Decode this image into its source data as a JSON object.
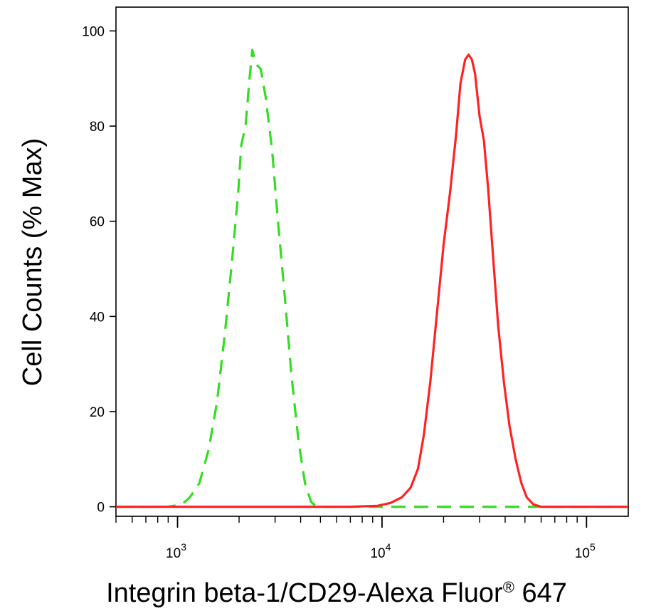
{
  "chart_data": {
    "type": "line",
    "title": "",
    "xlabel_main": "Integrin beta-1/CD29-Alexa Fluor",
    "xlabel_reg": "®",
    "xlabel_tail": " 647",
    "ylabel": "Cell Counts (% Max)",
    "x_scale": "log",
    "xlim": [
      500,
      160000
    ],
    "ylim": [
      -2,
      105
    ],
    "y_ticks": [
      {
        "value": 0,
        "label": "0"
      },
      {
        "value": 20,
        "label": "20"
      },
      {
        "value": 40,
        "label": "40"
      },
      {
        "value": 60,
        "label": "60"
      },
      {
        "value": 80,
        "label": "80"
      },
      {
        "value": 100,
        "label": "100"
      }
    ],
    "x_ticks": [
      {
        "value": 1000,
        "base": "10",
        "exp": "3"
      },
      {
        "value": 10000,
        "base": "10",
        "exp": "4"
      },
      {
        "value": 100000,
        "base": "10",
        "exp": "5"
      }
    ],
    "grid": false,
    "series": [
      {
        "color": "#33dd22",
        "dash": true,
        "points": [
          [
            500,
            0
          ],
          [
            900,
            0
          ],
          [
            1050,
            0.5
          ],
          [
            1150,
            2
          ],
          [
            1280,
            5
          ],
          [
            1420,
            12
          ],
          [
            1560,
            22
          ],
          [
            1700,
            36
          ],
          [
            1850,
            52
          ],
          [
            1980,
            66
          ],
          [
            2050,
            76
          ],
          [
            2150,
            80
          ],
          [
            2250,
            90
          ],
          [
            2320,
            96
          ],
          [
            2420,
            93
          ],
          [
            2550,
            92
          ],
          [
            2700,
            86
          ],
          [
            2900,
            75
          ],
          [
            3100,
            60
          ],
          [
            3350,
            44
          ],
          [
            3600,
            28
          ],
          [
            3900,
            14
          ],
          [
            4200,
            5
          ],
          [
            4500,
            1
          ],
          [
            4800,
            0
          ],
          [
            160000,
            0
          ]
        ]
      },
      {
        "color": "#ff2222",
        "dash": false,
        "points": [
          [
            500,
            0
          ],
          [
            7000,
            0
          ],
          [
            9500,
            0.2
          ],
          [
            11000,
            0.8
          ],
          [
            12500,
            2
          ],
          [
            13800,
            4
          ],
          [
            15000,
            8
          ],
          [
            16000,
            15
          ],
          [
            17200,
            26
          ],
          [
            18500,
            40
          ],
          [
            20000,
            55
          ],
          [
            21500,
            66
          ],
          [
            23000,
            78
          ],
          [
            24200,
            89
          ],
          [
            25500,
            94
          ],
          [
            26500,
            95
          ],
          [
            27500,
            94
          ],
          [
            28500,
            91
          ],
          [
            30000,
            82
          ],
          [
            31500,
            77
          ],
          [
            33000,
            67
          ],
          [
            35000,
            52
          ],
          [
            37000,
            38
          ],
          [
            39500,
            26
          ],
          [
            42000,
            17
          ],
          [
            45000,
            10
          ],
          [
            48000,
            5
          ],
          [
            51000,
            2
          ],
          [
            55000,
            0.5
          ],
          [
            60000,
            0
          ],
          [
            160000,
            0
          ]
        ]
      }
    ]
  }
}
